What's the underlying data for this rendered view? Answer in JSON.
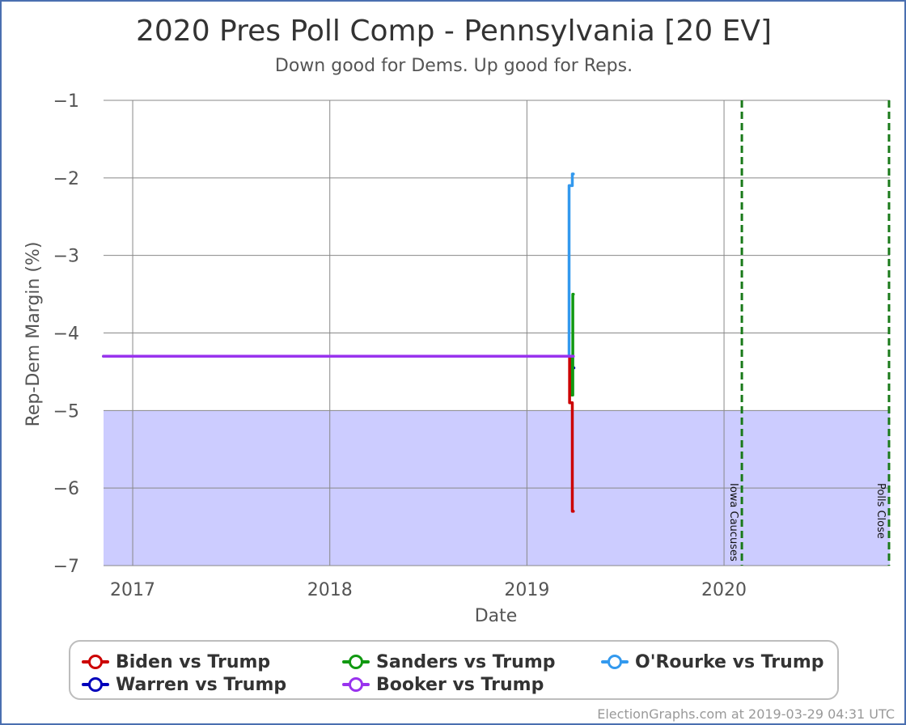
{
  "credit": "ElectionGraphs.com at 2019-03-29 04:31 UTC",
  "chart_data": {
    "type": "line",
    "title": "2020 Pres Poll Comp - Pennsylvania [20 EV]",
    "subtitle": "Down good for Dems. Up good for Reps.",
    "xlabel": "Date",
    "ylabel": "Rep-Dem Margin (%)",
    "xlim": [
      "2016-11-08",
      "2020-11-03"
    ],
    "ylim": [
      -7,
      -1
    ],
    "x_ticks": [
      {
        "date": "2017-01-01",
        "label": "2017"
      },
      {
        "date": "2018-01-01",
        "label": "2018"
      },
      {
        "date": "2019-01-01",
        "label": "2019"
      },
      {
        "date": "2020-01-01",
        "label": "2020"
      }
    ],
    "y_ticks": [
      -1,
      -2,
      -3,
      -4,
      -5,
      -6,
      -7
    ],
    "y_tick_labels": [
      "−1",
      "−2",
      "−3",
      "−4",
      "−5",
      "−6",
      "−7"
    ],
    "grid": true,
    "shaded_band": {
      "from": -7,
      "to": -5,
      "color": "#ccccff"
    },
    "vertical_markers": [
      {
        "date": "2020-02-03",
        "label": "Iowa Caucuses",
        "color": "#1a7a1a"
      },
      {
        "date": "2020-11-03",
        "label": "Polls Close",
        "color": "#1a7a1a"
      }
    ],
    "legend_position": "bottom",
    "series": [
      {
        "name": "Warren vs Trump",
        "color": "#0000bb",
        "points": [
          [
            "2016-11-08",
            -4.3
          ],
          [
            "2019-03-26",
            -4.3
          ],
          [
            "2019-03-26",
            -4.45
          ],
          [
            "2019-03-29",
            -4.45
          ]
        ]
      },
      {
        "name": "Sanders vs Trump",
        "color": "#119911",
        "points": [
          [
            "2016-11-08",
            -4.3
          ],
          [
            "2019-03-25",
            -4.3
          ],
          [
            "2019-03-25",
            -4.8
          ],
          [
            "2019-03-27",
            -4.8
          ],
          [
            "2019-03-27",
            -3.5
          ],
          [
            "2019-03-28",
            -3.5
          ]
        ]
      },
      {
        "name": "Biden vs Trump",
        "color": "#cc0000",
        "points": [
          [
            "2016-11-08",
            -4.3
          ],
          [
            "2019-03-21",
            -4.3
          ],
          [
            "2019-03-21",
            -4.9
          ],
          [
            "2019-03-26",
            -4.9
          ],
          [
            "2019-03-26",
            -6.3
          ],
          [
            "2019-03-28",
            -6.3
          ]
        ]
      },
      {
        "name": "O'Rourke vs Trump",
        "color": "#3399ee",
        "points": [
          [
            "2016-11-08",
            -4.3
          ],
          [
            "2019-03-20",
            -4.3
          ],
          [
            "2019-03-20",
            -2.1
          ],
          [
            "2019-03-26",
            -2.1
          ],
          [
            "2019-03-26",
            -1.95
          ],
          [
            "2019-03-28",
            -1.95
          ]
        ]
      },
      {
        "name": "Booker vs Trump",
        "color": "#9933ee",
        "points": [
          [
            "2016-11-08",
            -4.3
          ],
          [
            "2019-03-28",
            -4.3
          ]
        ]
      }
    ],
    "legend": [
      {
        "name": "Biden vs Trump",
        "color": "#cc0000"
      },
      {
        "name": "Sanders vs Trump",
        "color": "#119911"
      },
      {
        "name": "O'Rourke vs Trump",
        "color": "#3399ee"
      },
      {
        "name": "Warren vs Trump",
        "color": "#0000bb"
      },
      {
        "name": "Booker vs Trump",
        "color": "#9933ee"
      }
    ]
  }
}
